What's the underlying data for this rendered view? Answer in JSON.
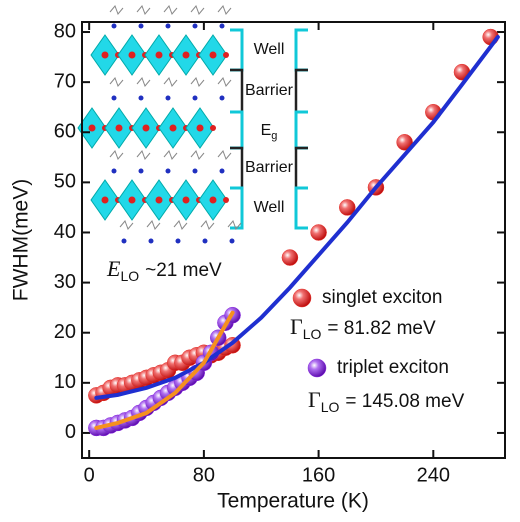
{
  "chart_data": {
    "type": "scatter",
    "xlabel": "Temperature (K)",
    "ylabel": "FWHM(meV)",
    "xlim": [
      -5,
      290
    ],
    "ylim": [
      -5,
      82
    ],
    "xticks": [
      0,
      80,
      160,
      240
    ],
    "yticks": [
      0,
      10,
      20,
      30,
      40,
      50,
      60,
      70,
      80
    ],
    "series": [
      {
        "name": "singlet exciton",
        "color": "#e8322a",
        "style": "points",
        "x": [
          5,
          10,
          15,
          20,
          25,
          30,
          35,
          40,
          45,
          50,
          55,
          60,
          65,
          70,
          75,
          80,
          85,
          90,
          95,
          100,
          140,
          160,
          180,
          200,
          220,
          240,
          260,
          280
        ],
        "values": [
          7.5,
          8,
          9,
          9.5,
          9.5,
          10,
          10.5,
          11,
          11.5,
          12,
          12.5,
          14,
          14,
          15,
          15.5,
          16,
          15.5,
          16,
          17,
          17.5,
          35,
          40,
          45,
          49,
          58,
          64,
          72,
          79
        ]
      },
      {
        "name": "triplet exciton",
        "color": "#8a2be2",
        "style": "points",
        "x": [
          5,
          10,
          15,
          20,
          25,
          30,
          35,
          40,
          45,
          50,
          55,
          60,
          65,
          70,
          75,
          80,
          85,
          90,
          95,
          100
        ],
        "values": [
          1,
          1,
          1.5,
          2,
          2.5,
          3,
          4,
          5,
          6,
          7,
          8,
          9,
          10,
          11,
          12,
          14,
          16,
          19,
          22,
          23.5
        ]
      },
      {
        "color": "#1f2fd0",
        "style": "line",
        "x": [
          5,
          20,
          40,
          60,
          80,
          100,
          120,
          140,
          160,
          180,
          200,
          220,
          240,
          260,
          285
        ],
        "values": [
          7,
          7.6,
          9,
          11,
          14,
          18,
          23,
          29,
          35.5,
          42,
          49,
          55.5,
          62,
          69.5,
          79
        ]
      },
      {
        "color": "#f5901e",
        "style": "line",
        "x": [
          5,
          20,
          40,
          60,
          80,
          100
        ],
        "values": [
          1,
          2,
          4,
          8,
          14,
          24
        ]
      }
    ],
    "annotations": [
      {
        "symbol": "E",
        "sub": "LO",
        "text": "~21 meV"
      },
      {
        "symbol": "Γ",
        "sub": "LO",
        "text": "= 81.82 meV"
      },
      {
        "symbol": "Γ",
        "sub": "LO",
        "text": "= 145.08 meV"
      }
    ],
    "inset_labels": [
      {
        "text": "Well"
      },
      {
        "text": "Barrier"
      },
      {
        "symbol": "E",
        "sub": "g"
      },
      {
        "text": "Barrier"
      },
      {
        "text": "Well"
      }
    ]
  }
}
